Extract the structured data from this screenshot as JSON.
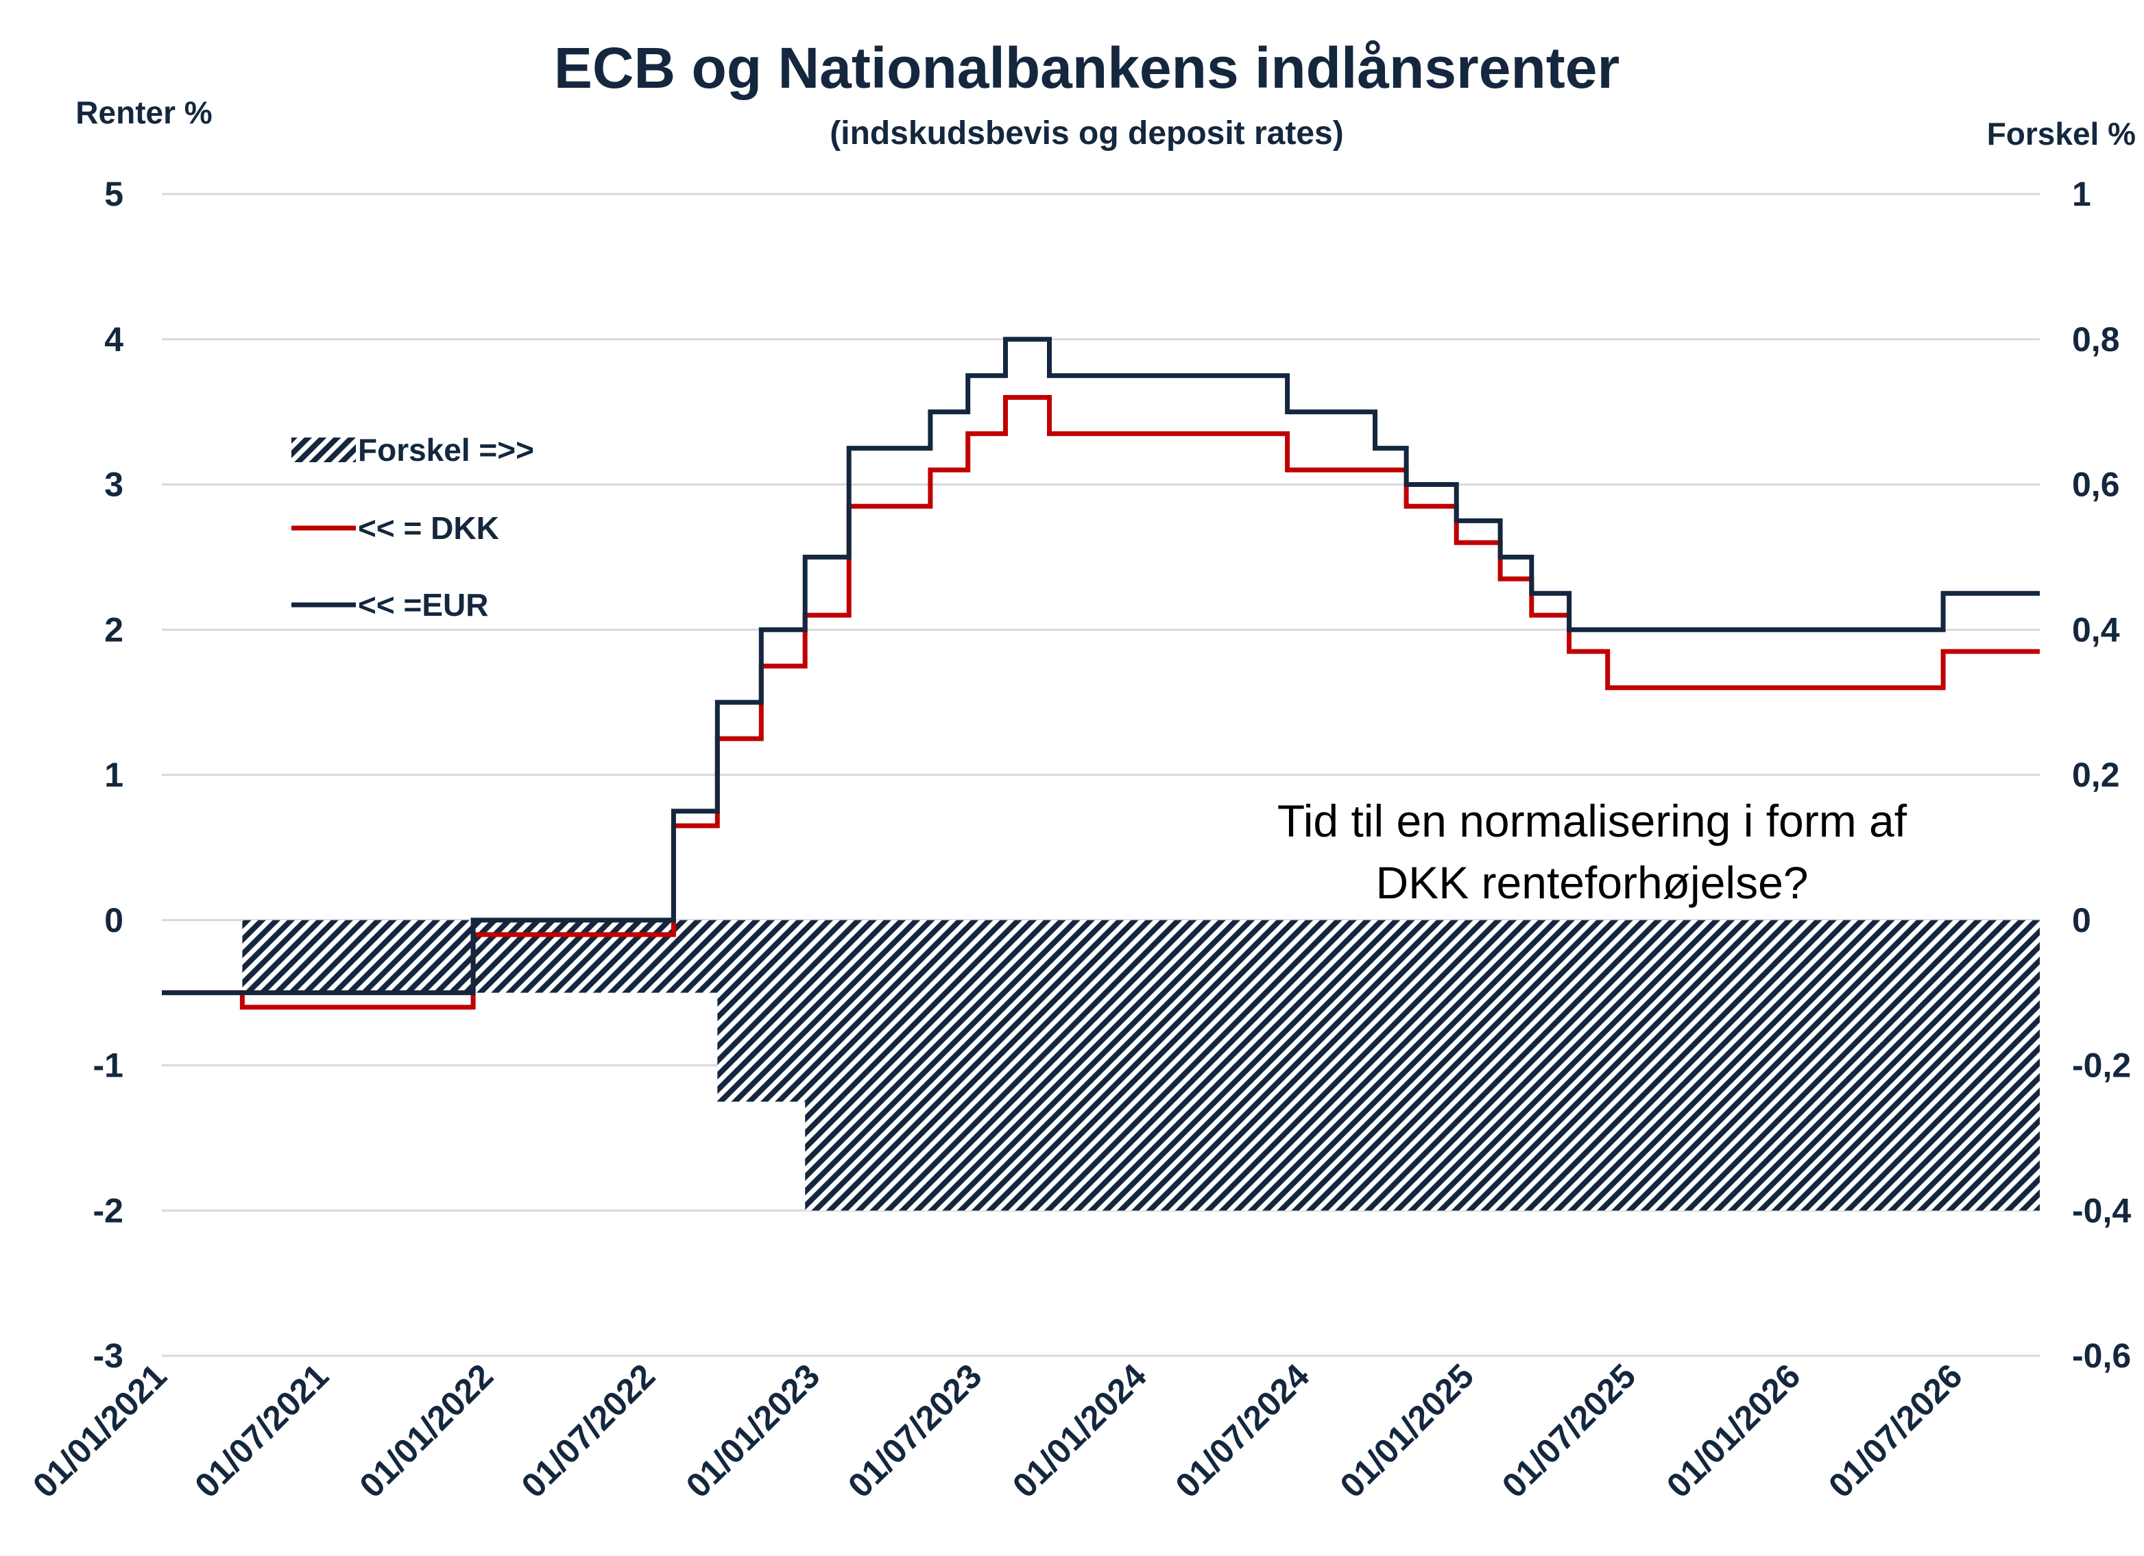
{
  "chart_data": {
    "type": "line",
    "title": "ECB og Nationalbankens indlånsrenter",
    "subtitle": "(indskudsbevis og deposit rates)",
    "ylabel_left": "Renter %",
    "ylabel_right": "Forskel %",
    "ylim_left": [
      -3,
      5
    ],
    "ylim_right": [
      -0.6,
      1
    ],
    "yticks_left": [
      "5",
      "4",
      "3",
      "2",
      "1",
      "0",
      "-1",
      "-2",
      "-3"
    ],
    "yticks_right": [
      "1",
      "0,8",
      "0,6",
      "0,4",
      "0,2",
      "0",
      "-0,2",
      "-0,4",
      "-0,6"
    ],
    "xticks": [
      "01/01/2021",
      "01/07/2021",
      "01/01/2022",
      "01/07/2022",
      "01/01/2023",
      "01/07/2023",
      "01/01/2024",
      "01/07/2024",
      "01/01/2025",
      "01/07/2025",
      "01/01/2026",
      "01/07/2026"
    ],
    "x_range": [
      "2021-01-01",
      "2026-10-01"
    ],
    "grid": true,
    "legend_position": "left-middle",
    "legend": [
      {
        "label": "Forskel =>>",
        "style": "hatched"
      },
      {
        "label": "<< = DKK",
        "style": "line"
      },
      {
        "label": "<< =EUR",
        "style": "line"
      }
    ],
    "series": [
      {
        "name": "<< =EUR",
        "axis": "left",
        "color": "#14273e",
        "points": [
          [
            "2021-01-01",
            -0.5
          ],
          [
            "2021-12-15",
            -0.5
          ],
          [
            "2021-12-15",
            0.0
          ],
          [
            "2022-07-27",
            0.0
          ],
          [
            "2022-07-27",
            0.75
          ],
          [
            "2022-09-14",
            0.75
          ],
          [
            "2022-09-14",
            1.5
          ],
          [
            "2022-11-02",
            1.5
          ],
          [
            "2022-11-02",
            2.0
          ],
          [
            "2022-12-21",
            2.0
          ],
          [
            "2022-12-21",
            2.5
          ],
          [
            "2023-02-08",
            2.5
          ],
          [
            "2023-02-08",
            3.25
          ],
          [
            "2023-05-10",
            3.25
          ],
          [
            "2023-05-10",
            3.5
          ],
          [
            "2023-06-21",
            3.5
          ],
          [
            "2023-06-21",
            3.75
          ],
          [
            "2023-08-02",
            3.75
          ],
          [
            "2023-08-02",
            4.0
          ],
          [
            "2023-09-20",
            4.0
          ],
          [
            "2023-09-20",
            3.75
          ],
          [
            "2024-06-12",
            3.75
          ],
          [
            "2024-06-12",
            3.5
          ],
          [
            "2024-09-18",
            3.5
          ],
          [
            "2024-09-18",
            3.25
          ],
          [
            "2024-10-23",
            3.25
          ],
          [
            "2024-10-23",
            3.0
          ],
          [
            "2024-12-18",
            3.0
          ],
          [
            "2024-12-18",
            2.75
          ],
          [
            "2025-02-05",
            2.75
          ],
          [
            "2025-02-05",
            2.5
          ],
          [
            "2025-03-12",
            2.5
          ],
          [
            "2025-03-12",
            2.25
          ],
          [
            "2025-04-23",
            2.25
          ],
          [
            "2025-04-23",
            2.0
          ],
          [
            "2026-06-15",
            2.0
          ],
          [
            "2026-06-15",
            2.25
          ],
          [
            "2026-10-01",
            2.25
          ]
        ]
      },
      {
        "name": "<< = DKK",
        "axis": "left",
        "color": "#c00000",
        "points": [
          [
            "2021-01-01",
            -0.5
          ],
          [
            "2021-04-01",
            -0.5
          ],
          [
            "2021-04-01",
            -0.6
          ],
          [
            "2021-12-15",
            -0.6
          ],
          [
            "2021-12-15",
            -0.1
          ],
          [
            "2022-07-27",
            -0.1
          ],
          [
            "2022-07-27",
            0.65
          ],
          [
            "2022-09-14",
            0.65
          ],
          [
            "2022-09-14",
            1.25
          ],
          [
            "2022-11-02",
            1.25
          ],
          [
            "2022-11-02",
            1.75
          ],
          [
            "2022-12-21",
            1.75
          ],
          [
            "2022-12-21",
            2.1
          ],
          [
            "2023-02-08",
            2.1
          ],
          [
            "2023-02-08",
            2.85
          ],
          [
            "2023-05-10",
            2.85
          ],
          [
            "2023-05-10",
            3.1
          ],
          [
            "2023-06-21",
            3.1
          ],
          [
            "2023-06-21",
            3.35
          ],
          [
            "2023-08-02",
            3.35
          ],
          [
            "2023-08-02",
            3.6
          ],
          [
            "2023-09-20",
            3.6
          ],
          [
            "2023-09-20",
            3.35
          ],
          [
            "2024-06-12",
            3.35
          ],
          [
            "2024-06-12",
            3.1
          ],
          [
            "2024-10-23",
            3.1
          ],
          [
            "2024-10-23",
            2.85
          ],
          [
            "2024-12-18",
            2.85
          ],
          [
            "2024-12-18",
            2.6
          ],
          [
            "2025-02-05",
            2.6
          ],
          [
            "2025-02-05",
            2.35
          ],
          [
            "2025-03-12",
            2.35
          ],
          [
            "2025-03-12",
            2.1
          ],
          [
            "2025-04-23",
            2.1
          ],
          [
            "2025-04-23",
            1.85
          ],
          [
            "2025-06-05",
            1.85
          ],
          [
            "2025-06-05",
            1.6
          ],
          [
            "2026-06-15",
            1.6
          ],
          [
            "2026-06-15",
            1.85
          ],
          [
            "2026-10-01",
            1.85
          ]
        ]
      },
      {
        "name": "Forskel =>>",
        "axis": "right",
        "type": "area",
        "color": "#14273e",
        "points": [
          [
            "2021-04-01",
            -0.1
          ],
          [
            "2021-12-15",
            -0.1
          ],
          [
            "2021-12-15",
            -0.1
          ],
          [
            "2022-09-14",
            -0.1
          ],
          [
            "2022-09-14",
            -0.25
          ],
          [
            "2022-12-21",
            -0.25
          ],
          [
            "2022-12-21",
            -0.4
          ],
          [
            "2026-10-01",
            -0.4
          ]
        ]
      }
    ],
    "annotation": {
      "lines": [
        "Tid til en normalisering i form af",
        "DKK renteforhøjelse?"
      ]
    }
  }
}
